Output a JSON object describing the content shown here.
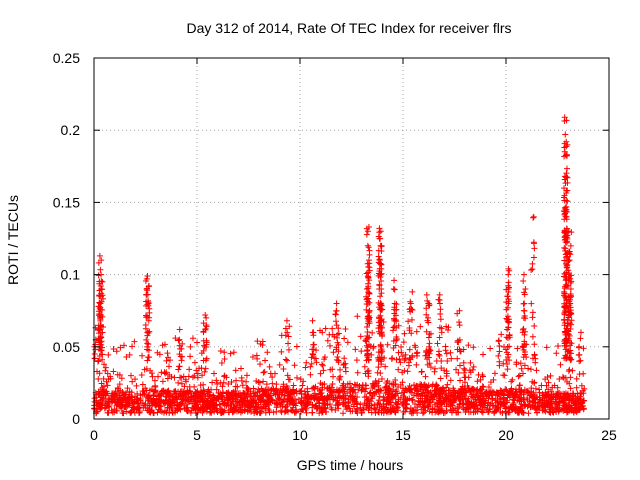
{
  "chart_data": {
    "type": "scatter",
    "title": "Day 312 of 2014, Rate Of TEC Index for receiver flrs",
    "xlabel": "GPS time / hours",
    "ylabel": "ROTI / TECUs",
    "xlim": [
      0,
      25
    ],
    "ylim": [
      0,
      0.25
    ],
    "x_ticks": [
      0,
      5,
      10,
      15,
      20,
      25
    ],
    "x_tick_labels": [
      "0",
      "5",
      "10",
      "15",
      "20",
      "25"
    ],
    "y_ticks": [
      0,
      0.05,
      0.1,
      0.15,
      0.2,
      0.25
    ],
    "y_tick_labels": [
      "0",
      "0.05",
      "0.1",
      "0.15",
      "0.2",
      "0.25"
    ],
    "grid": true,
    "marker": "+",
    "color": "#ff0000",
    "series": [
      {
        "name": "ROTI",
        "density_profile": [
          {
            "x": 0.0,
            "base": 0.008,
            "high": 0.045
          },
          {
            "x": 0.4,
            "base": 0.01,
            "high": 0.04
          },
          {
            "x": 1.0,
            "base": 0.008,
            "high": 0.03
          },
          {
            "x": 2.0,
            "base": 0.01,
            "high": 0.035
          },
          {
            "x": 3.0,
            "base": 0.01,
            "high": 0.035
          },
          {
            "x": 4.0,
            "base": 0.01,
            "high": 0.04
          },
          {
            "x": 5.0,
            "base": 0.01,
            "high": 0.04
          },
          {
            "x": 6.0,
            "base": 0.008,
            "high": 0.03
          },
          {
            "x": 7.0,
            "base": 0.008,
            "high": 0.03
          },
          {
            "x": 8.0,
            "base": 0.01,
            "high": 0.035
          },
          {
            "x": 9.0,
            "base": 0.012,
            "high": 0.04
          },
          {
            "x": 10.0,
            "base": 0.012,
            "high": 0.04
          },
          {
            "x": 11.0,
            "base": 0.012,
            "high": 0.045
          },
          {
            "x": 12.0,
            "base": 0.012,
            "high": 0.045
          },
          {
            "x": 13.0,
            "base": 0.015,
            "high": 0.055
          },
          {
            "x": 14.0,
            "base": 0.015,
            "high": 0.06
          },
          {
            "x": 15.0,
            "base": 0.015,
            "high": 0.055
          },
          {
            "x": 16.0,
            "base": 0.015,
            "high": 0.05
          },
          {
            "x": 17.0,
            "base": 0.012,
            "high": 0.045
          },
          {
            "x": 18.0,
            "base": 0.012,
            "high": 0.04
          },
          {
            "x": 19.0,
            "base": 0.01,
            "high": 0.035
          },
          {
            "x": 20.0,
            "base": 0.01,
            "high": 0.04
          },
          {
            "x": 21.0,
            "base": 0.01,
            "high": 0.04
          },
          {
            "x": 22.0,
            "base": 0.008,
            "high": 0.03
          },
          {
            "x": 23.0,
            "base": 0.008,
            "high": 0.035
          },
          {
            "x": 23.8,
            "base": 0.008,
            "high": 0.03
          }
        ],
        "spikes": [
          {
            "x": 0.05,
            "values": [
              0.045,
              0.05,
              0.055
            ]
          },
          {
            "x": 0.3,
            "values": [
              0.09,
              0.1,
              0.11,
              0.113
            ]
          },
          {
            "x": 0.35,
            "values": [
              0.07,
              0.08,
              0.087,
              0.095
            ]
          },
          {
            "x": 2.6,
            "values": [
              0.06,
              0.08,
              0.09,
              0.097,
              0.099
            ]
          },
          {
            "x": 4.2,
            "values": [
              0.055,
              0.062
            ]
          },
          {
            "x": 5.4,
            "values": [
              0.065,
              0.07,
              0.072
            ]
          },
          {
            "x": 9.4,
            "values": [
              0.06,
              0.068
            ]
          },
          {
            "x": 10.6,
            "values": [
              0.058,
              0.068
            ]
          },
          {
            "x": 11.8,
            "values": [
              0.065,
              0.075,
              0.08
            ]
          },
          {
            "x": 13.3,
            "values": [
              0.09,
              0.11,
              0.12,
              0.13,
              0.133
            ]
          },
          {
            "x": 13.9,
            "values": [
              0.09,
              0.1,
              0.11,
              0.12,
              0.13,
              0.132
            ]
          },
          {
            "x": 14.6,
            "values": [
              0.08,
              0.09,
              0.096
            ]
          },
          {
            "x": 15.4,
            "values": [
              0.08,
              0.088
            ]
          },
          {
            "x": 16.2,
            "values": [
              0.07,
              0.08,
              0.086
            ]
          },
          {
            "x": 16.8,
            "values": [
              0.08,
              0.086
            ]
          },
          {
            "x": 17.7,
            "values": [
              0.065,
              0.075
            ]
          },
          {
            "x": 20.1,
            "values": [
              0.08,
              0.09,
              0.1,
              0.104
            ]
          },
          {
            "x": 20.9,
            "values": [
              0.08,
              0.09,
              0.1
            ]
          },
          {
            "x": 21.3,
            "values": [
              0.14
            ]
          },
          {
            "x": 22.9,
            "values": [
              0.13,
              0.145,
              0.158,
              0.168,
              0.183,
              0.197,
              0.209
            ]
          },
          {
            "x": 23.1,
            "values": [
              0.08,
              0.09,
              0.1,
              0.11,
              0.116,
              0.13
            ]
          },
          {
            "x": 23.6,
            "values": [
              0.04,
              0.05,
              0.06
            ]
          }
        ]
      }
    ]
  }
}
